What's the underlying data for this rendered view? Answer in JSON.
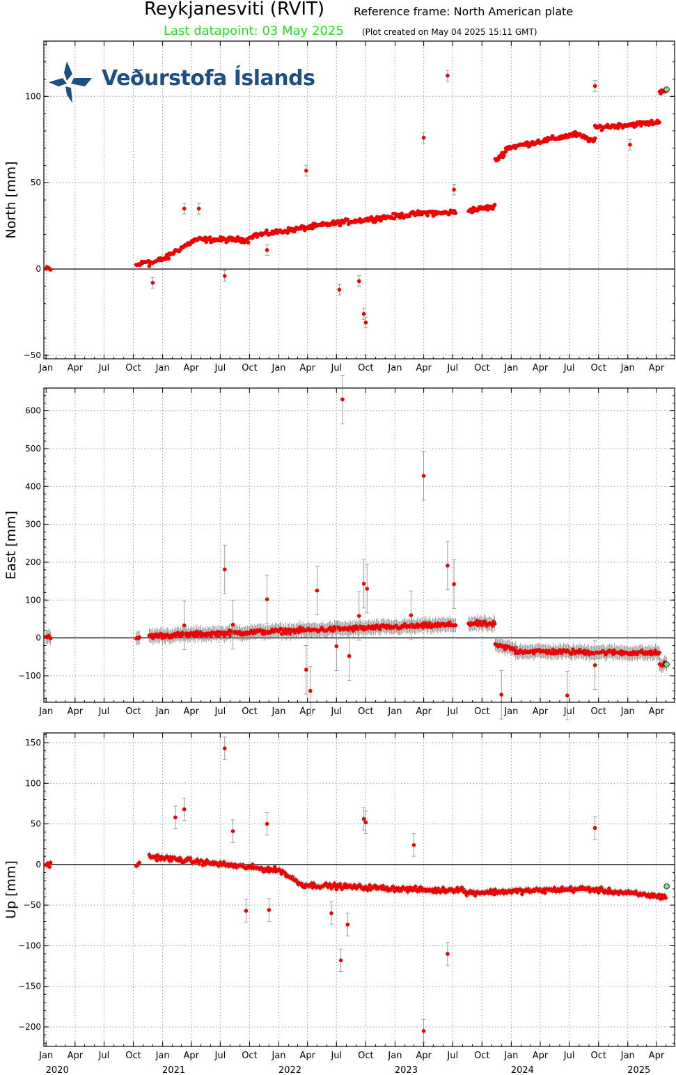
{
  "header": {
    "station": "Reykjanesviti (RVIT)",
    "reference_frame": "Reference frame: North American plate",
    "last_datapoint": "Last datapoint: 03 May 2025",
    "plot_created": "(Plot created on May 04 2025 15:11 GMT)"
  },
  "logo": {
    "text": "Veðurstofa Íslands",
    "color": "#1d4f82"
  },
  "colors": {
    "data": "#ee0000",
    "last_point": "#7fe07f",
    "errorbar": "#888888",
    "title_last": "#22e01c"
  },
  "month_ticks": [
    "Jan",
    "Apr",
    "Jul",
    "Oct",
    "Jan",
    "Apr",
    "Jul",
    "Oct",
    "Jan",
    "Apr",
    "Jul",
    "Oct",
    "Jan",
    "Apr",
    "Jul",
    "Oct",
    "Jan",
    "Apr",
    "Jul",
    "Oct",
    "Jan",
    "Apr"
  ],
  "year_labels": [
    "2020",
    "2021",
    "2022",
    "2023",
    "2024",
    "2025"
  ],
  "chart_data": [
    {
      "type": "scatter",
      "ylabel": "North [mm]",
      "xlim": [
        "2019-12-25",
        "2025-05-28"
      ],
      "ylim": [
        -52,
        132
      ],
      "yticks": [
        -50,
        0,
        50,
        100
      ],
      "grid": true,
      "segments": [
        {
          "from": "2020-01-01",
          "to": "2020-01-15",
          "start": 0,
          "end": 0
        },
        {
          "from": "2020-10-10",
          "to": "2020-11-20",
          "start": 2,
          "end": 5
        },
        {
          "from": "2020-11-20",
          "to": "2021-01-20",
          "start": 3,
          "end": 7
        },
        {
          "from": "2021-01-20",
          "to": "2021-04-15",
          "start": 8,
          "end": 17
        },
        {
          "from": "2021-04-15",
          "to": "2021-09-30",
          "start": 17,
          "end": 17
        },
        {
          "from": "2021-10-01",
          "to": "2022-07-15",
          "start": 19,
          "end": 27
        },
        {
          "from": "2022-07-15",
          "to": "2023-05-01",
          "start": 27,
          "end": 33
        },
        {
          "from": "2023-05-01",
          "to": "2023-07-10",
          "start": 32,
          "end": 33
        },
        {
          "from": "2023-08-20",
          "to": "2023-11-10",
          "start": 34,
          "end": 36
        },
        {
          "from": "2023-11-12",
          "to": "2023-12-15",
          "start": 63,
          "end": 68
        },
        {
          "from": "2023-12-15",
          "to": "2024-07-20",
          "start": 70,
          "end": 78
        },
        {
          "from": "2024-07-20",
          "to": "2024-09-20",
          "start": 78,
          "end": 74
        },
        {
          "from": "2024-09-20",
          "to": "2025-04-10",
          "start": 82,
          "end": 85
        },
        {
          "from": "2025-04-11",
          "to": "2025-05-03",
          "start": 103,
          "end": 104
        }
      ],
      "outliers": [
        {
          "x": "2021-03-10",
          "y": 35
        },
        {
          "x": "2021-04-25",
          "y": 35
        },
        {
          "x": "2021-07-15",
          "y": -4
        },
        {
          "x": "2021-11-25",
          "y": 11
        },
        {
          "x": "2022-03-28",
          "y": 57
        },
        {
          "x": "2022-07-10",
          "y": -12
        },
        {
          "x": "2022-09-10",
          "y": -7
        },
        {
          "x": "2022-09-25",
          "y": -26
        },
        {
          "x": "2022-10-01",
          "y": -31
        },
        {
          "x": "2023-04-01",
          "y": 76
        },
        {
          "x": "2023-06-15",
          "y": 112
        },
        {
          "x": "2023-07-05",
          "y": 46
        },
        {
          "x": "2024-09-20",
          "y": 106
        },
        {
          "x": "2025-01-08",
          "y": 72
        },
        {
          "x": "2020-12-01",
          "y": -8
        }
      ],
      "last_point": {
        "x": "2025-05-03",
        "y": 104
      }
    },
    {
      "type": "scatter",
      "ylabel": "East [mm]",
      "xlim": [
        "2019-12-25",
        "2025-05-28"
      ],
      "ylim": [
        -170,
        660
      ],
      "yticks": [
        -100,
        0,
        100,
        200,
        300,
        400,
        500,
        600
      ],
      "grid": true,
      "segments": [
        {
          "from": "2020-01-01",
          "to": "2020-01-15",
          "start": 0,
          "end": 0
        },
        {
          "from": "2020-10-10",
          "to": "2020-10-20",
          "start": 0,
          "end": 0
        },
        {
          "from": "2020-11-20",
          "to": "2023-07-10",
          "start": 5,
          "end": 35
        },
        {
          "from": "2023-08-20",
          "to": "2023-11-10",
          "start": 38,
          "end": 36
        },
        {
          "from": "2023-11-12",
          "to": "2024-01-15",
          "start": -20,
          "end": -30
        },
        {
          "from": "2024-01-15",
          "to": "2025-04-10",
          "start": -35,
          "end": -40
        },
        {
          "from": "2025-04-11",
          "to": "2025-05-03",
          "start": -70,
          "end": -70
        }
      ],
      "outliers": [
        {
          "x": "2021-03-10",
          "y": 33
        },
        {
          "x": "2021-07-15",
          "y": 181
        },
        {
          "x": "2021-08-10",
          "y": 35
        },
        {
          "x": "2021-11-25",
          "y": 102
        },
        {
          "x": "2022-03-28",
          "y": -84
        },
        {
          "x": "2022-05-01",
          "y": 125
        },
        {
          "x": "2022-04-10",
          "y": -140
        },
        {
          "x": "2022-07-01",
          "y": -22
        },
        {
          "x": "2022-07-20",
          "y": 630
        },
        {
          "x": "2022-08-10",
          "y": -48
        },
        {
          "x": "2022-09-10",
          "y": 58
        },
        {
          "x": "2022-09-25",
          "y": 143
        },
        {
          "x": "2022-10-05",
          "y": 130
        },
        {
          "x": "2023-02-20",
          "y": 60
        },
        {
          "x": "2023-04-01",
          "y": 428
        },
        {
          "x": "2023-06-15",
          "y": 191
        },
        {
          "x": "2023-07-05",
          "y": 142
        },
        {
          "x": "2023-12-01",
          "y": -150
        },
        {
          "x": "2024-06-25",
          "y": -152
        },
        {
          "x": "2024-09-20",
          "y": -72
        }
      ],
      "last_point": {
        "x": "2025-05-03",
        "y": -70
      }
    },
    {
      "type": "scatter",
      "ylabel": "Up [mm]",
      "xlim": [
        "2019-12-25",
        "2025-05-28"
      ],
      "ylim": [
        -224,
        162
      ],
      "yticks": [
        -200,
        -150,
        -100,
        -50,
        0,
        50,
        100,
        150
      ],
      "grid": true,
      "segments": [
        {
          "from": "2020-01-01",
          "to": "2020-01-15",
          "start": 0,
          "end": 0
        },
        {
          "from": "2020-10-10",
          "to": "2020-10-20",
          "start": 0,
          "end": 0
        },
        {
          "from": "2020-11-20",
          "to": "2021-07-10",
          "start": 10,
          "end": 0
        },
        {
          "from": "2021-07-10",
          "to": "2022-01-15",
          "start": 0,
          "end": -8
        },
        {
          "from": "2022-01-15",
          "to": "2022-03-15",
          "start": -10,
          "end": -25
        },
        {
          "from": "2022-03-15",
          "to": "2023-05-20",
          "start": -25,
          "end": -32
        },
        {
          "from": "2023-05-20",
          "to": "2023-08-05",
          "start": -32,
          "end": -30
        },
        {
          "from": "2023-08-05",
          "to": "2024-08-20",
          "start": -35,
          "end": -30
        },
        {
          "from": "2024-08-20",
          "to": "2025-04-30",
          "start": -30,
          "end": -40
        }
      ],
      "outliers": [
        {
          "x": "2021-02-10",
          "y": 58
        },
        {
          "x": "2021-03-10",
          "y": 68
        },
        {
          "x": "2021-07-15",
          "y": 143
        },
        {
          "x": "2021-08-10",
          "y": 41
        },
        {
          "x": "2021-09-20",
          "y": -57
        },
        {
          "x": "2021-11-25",
          "y": 50
        },
        {
          "x": "2021-12-01",
          "y": -56
        },
        {
          "x": "2022-06-15",
          "y": -60
        },
        {
          "x": "2022-07-15",
          "y": -118
        },
        {
          "x": "2022-08-05",
          "y": -74
        },
        {
          "x": "2022-09-25",
          "y": 56
        },
        {
          "x": "2022-10-01",
          "y": 52
        },
        {
          "x": "2023-03-01",
          "y": 24
        },
        {
          "x": "2023-04-01",
          "y": -205
        },
        {
          "x": "2023-06-15",
          "y": -110
        },
        {
          "x": "2024-09-20",
          "y": 45
        }
      ],
      "last_point": {
        "x": "2025-05-03",
        "y": -27
      }
    }
  ]
}
